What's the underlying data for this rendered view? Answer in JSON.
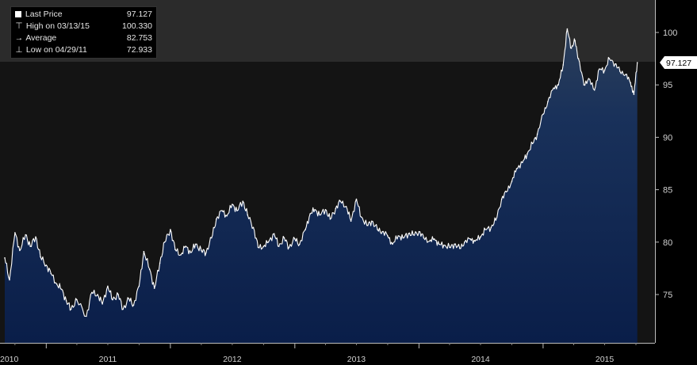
{
  "legend": {
    "last": {
      "label": "Last Price",
      "value": "97.127"
    },
    "high": {
      "label": "High on 03/13/15",
      "value": "100.330"
    },
    "avg": {
      "label": "Average",
      "value": "82.753"
    },
    "low": {
      "label": "Low on 04/29/11",
      "value": "72.933"
    }
  },
  "last_badge": "97.127",
  "colors": {
    "background": "#000000",
    "top_band": "#2b2b2b",
    "plot_background": "#141414",
    "area_fill_top": "#2c3f5a",
    "area_fill_bottom": "#0a1e49",
    "line": "#ffffff"
  },
  "chart_data": {
    "type": "area",
    "title": "",
    "xlabel": "",
    "ylabel": "",
    "ylim": [
      71,
      102
    ],
    "xlim": [
      "2010-09-01",
      "2015-10-15"
    ],
    "y_ticks": [
      75,
      80,
      85,
      90,
      95,
      100
    ],
    "x_ticks": [
      {
        "date": "2010-07-01",
        "label": "2010"
      },
      {
        "date": "2011-07-01",
        "label": "2011"
      },
      {
        "date": "2012-07-01",
        "label": "2012"
      },
      {
        "date": "2013-07-01",
        "label": "2013"
      },
      {
        "date": "2014-07-01",
        "label": "2014"
      },
      {
        "date": "2015-07-01",
        "label": "2015"
      }
    ],
    "year_separators": [
      "2011-01-01",
      "2012-01-01",
      "2013-01-01",
      "2014-01-01",
      "2015-01-01"
    ],
    "grid": false,
    "legend_position": "top-left",
    "series": [
      {
        "name": "Last Price",
        "x": [
          "2010-09-01",
          "2010-09-15",
          "2010-10-01",
          "2010-10-15",
          "2010-11-01",
          "2010-11-15",
          "2010-12-01",
          "2010-12-15",
          "2011-01-01",
          "2011-01-15",
          "2011-02-01",
          "2011-02-15",
          "2011-03-01",
          "2011-03-15",
          "2011-04-01",
          "2011-04-29",
          "2011-05-15",
          "2011-06-01",
          "2011-06-15",
          "2011-07-01",
          "2011-07-15",
          "2011-08-01",
          "2011-08-15",
          "2011-09-01",
          "2011-09-15",
          "2011-10-01",
          "2011-10-15",
          "2011-11-01",
          "2011-11-15",
          "2011-12-01",
          "2011-12-15",
          "2012-01-01",
          "2012-01-15",
          "2012-02-01",
          "2012-02-15",
          "2012-03-01",
          "2012-03-15",
          "2012-04-01",
          "2012-04-15",
          "2012-05-01",
          "2012-05-15",
          "2012-06-01",
          "2012-06-15",
          "2012-07-01",
          "2012-07-15",
          "2012-08-01",
          "2012-08-15",
          "2012-09-01",
          "2012-09-15",
          "2012-10-01",
          "2012-10-15",
          "2012-11-01",
          "2012-11-15",
          "2012-12-01",
          "2012-12-15",
          "2013-01-01",
          "2013-01-15",
          "2013-02-01",
          "2013-02-15",
          "2013-03-01",
          "2013-03-15",
          "2013-04-01",
          "2013-04-15",
          "2013-05-01",
          "2013-05-15",
          "2013-06-01",
          "2013-06-15",
          "2013-07-01",
          "2013-07-15",
          "2013-08-01",
          "2013-08-15",
          "2013-09-01",
          "2013-09-15",
          "2013-10-01",
          "2013-10-15",
          "2013-11-01",
          "2013-11-15",
          "2013-12-01",
          "2013-12-15",
          "2014-01-01",
          "2014-01-15",
          "2014-02-01",
          "2014-02-15",
          "2014-03-01",
          "2014-03-15",
          "2014-04-01",
          "2014-04-15",
          "2014-05-01",
          "2014-05-15",
          "2014-06-01",
          "2014-06-15",
          "2014-07-01",
          "2014-07-15",
          "2014-08-01",
          "2014-08-15",
          "2014-09-01",
          "2014-09-15",
          "2014-10-01",
          "2014-10-15",
          "2014-11-01",
          "2014-11-15",
          "2014-12-01",
          "2014-12-15",
          "2015-01-01",
          "2015-01-15",
          "2015-02-01",
          "2015-02-15",
          "2015-03-01",
          "2015-03-13",
          "2015-03-25",
          "2015-04-05",
          "2015-04-15",
          "2015-05-01",
          "2015-05-15",
          "2015-06-01",
          "2015-06-15",
          "2015-07-01",
          "2015-07-15",
          "2015-08-01",
          "2015-08-15",
          "2015-09-01",
          "2015-09-15",
          "2015-09-25",
          "2015-10-05"
        ],
        "values": [
          78.5,
          76.4,
          80.9,
          79.2,
          80.7,
          79.6,
          80.5,
          78.6,
          77.8,
          77.0,
          76.0,
          75.5,
          74.4,
          73.6,
          74.5,
          72.93,
          75.2,
          75.0,
          74.1,
          75.8,
          74.5,
          75.0,
          73.6,
          74.6,
          74.0,
          75.8,
          79.1,
          77.4,
          75.6,
          78.0,
          80.0,
          81.2,
          79.3,
          78.8,
          79.6,
          79.0,
          79.8,
          79.2,
          79.0,
          80.4,
          82.2,
          83.0,
          82.5,
          83.6,
          83.0,
          83.9,
          82.6,
          81.4,
          79.5,
          79.6,
          80.0,
          80.8,
          79.6,
          80.4,
          79.5,
          80.3,
          79.8,
          81.2,
          82.7,
          83.1,
          82.6,
          83.1,
          82.2,
          83.2,
          83.9,
          83.4,
          82.0,
          84.1,
          82.4,
          81.6,
          82.0,
          81.2,
          81.0,
          80.6,
          79.8,
          80.6,
          80.4,
          80.8,
          80.7,
          81.0,
          80.4,
          80.1,
          80.3,
          79.8,
          79.7,
          79.5,
          79.8,
          79.4,
          80.0,
          80.3,
          80.1,
          80.5,
          81.2,
          81.4,
          82.1,
          84.1,
          84.8,
          85.8,
          87.0,
          87.6,
          88.4,
          89.4,
          90.3,
          92.2,
          93.4,
          94.7,
          95.0,
          96.9,
          100.33,
          98.5,
          99.2,
          97.5,
          95.0,
          95.6,
          94.5,
          96.5,
          96.4,
          97.5,
          97.0,
          96.3,
          96.0,
          95.2,
          94.1,
          97.127
        ]
      }
    ]
  }
}
